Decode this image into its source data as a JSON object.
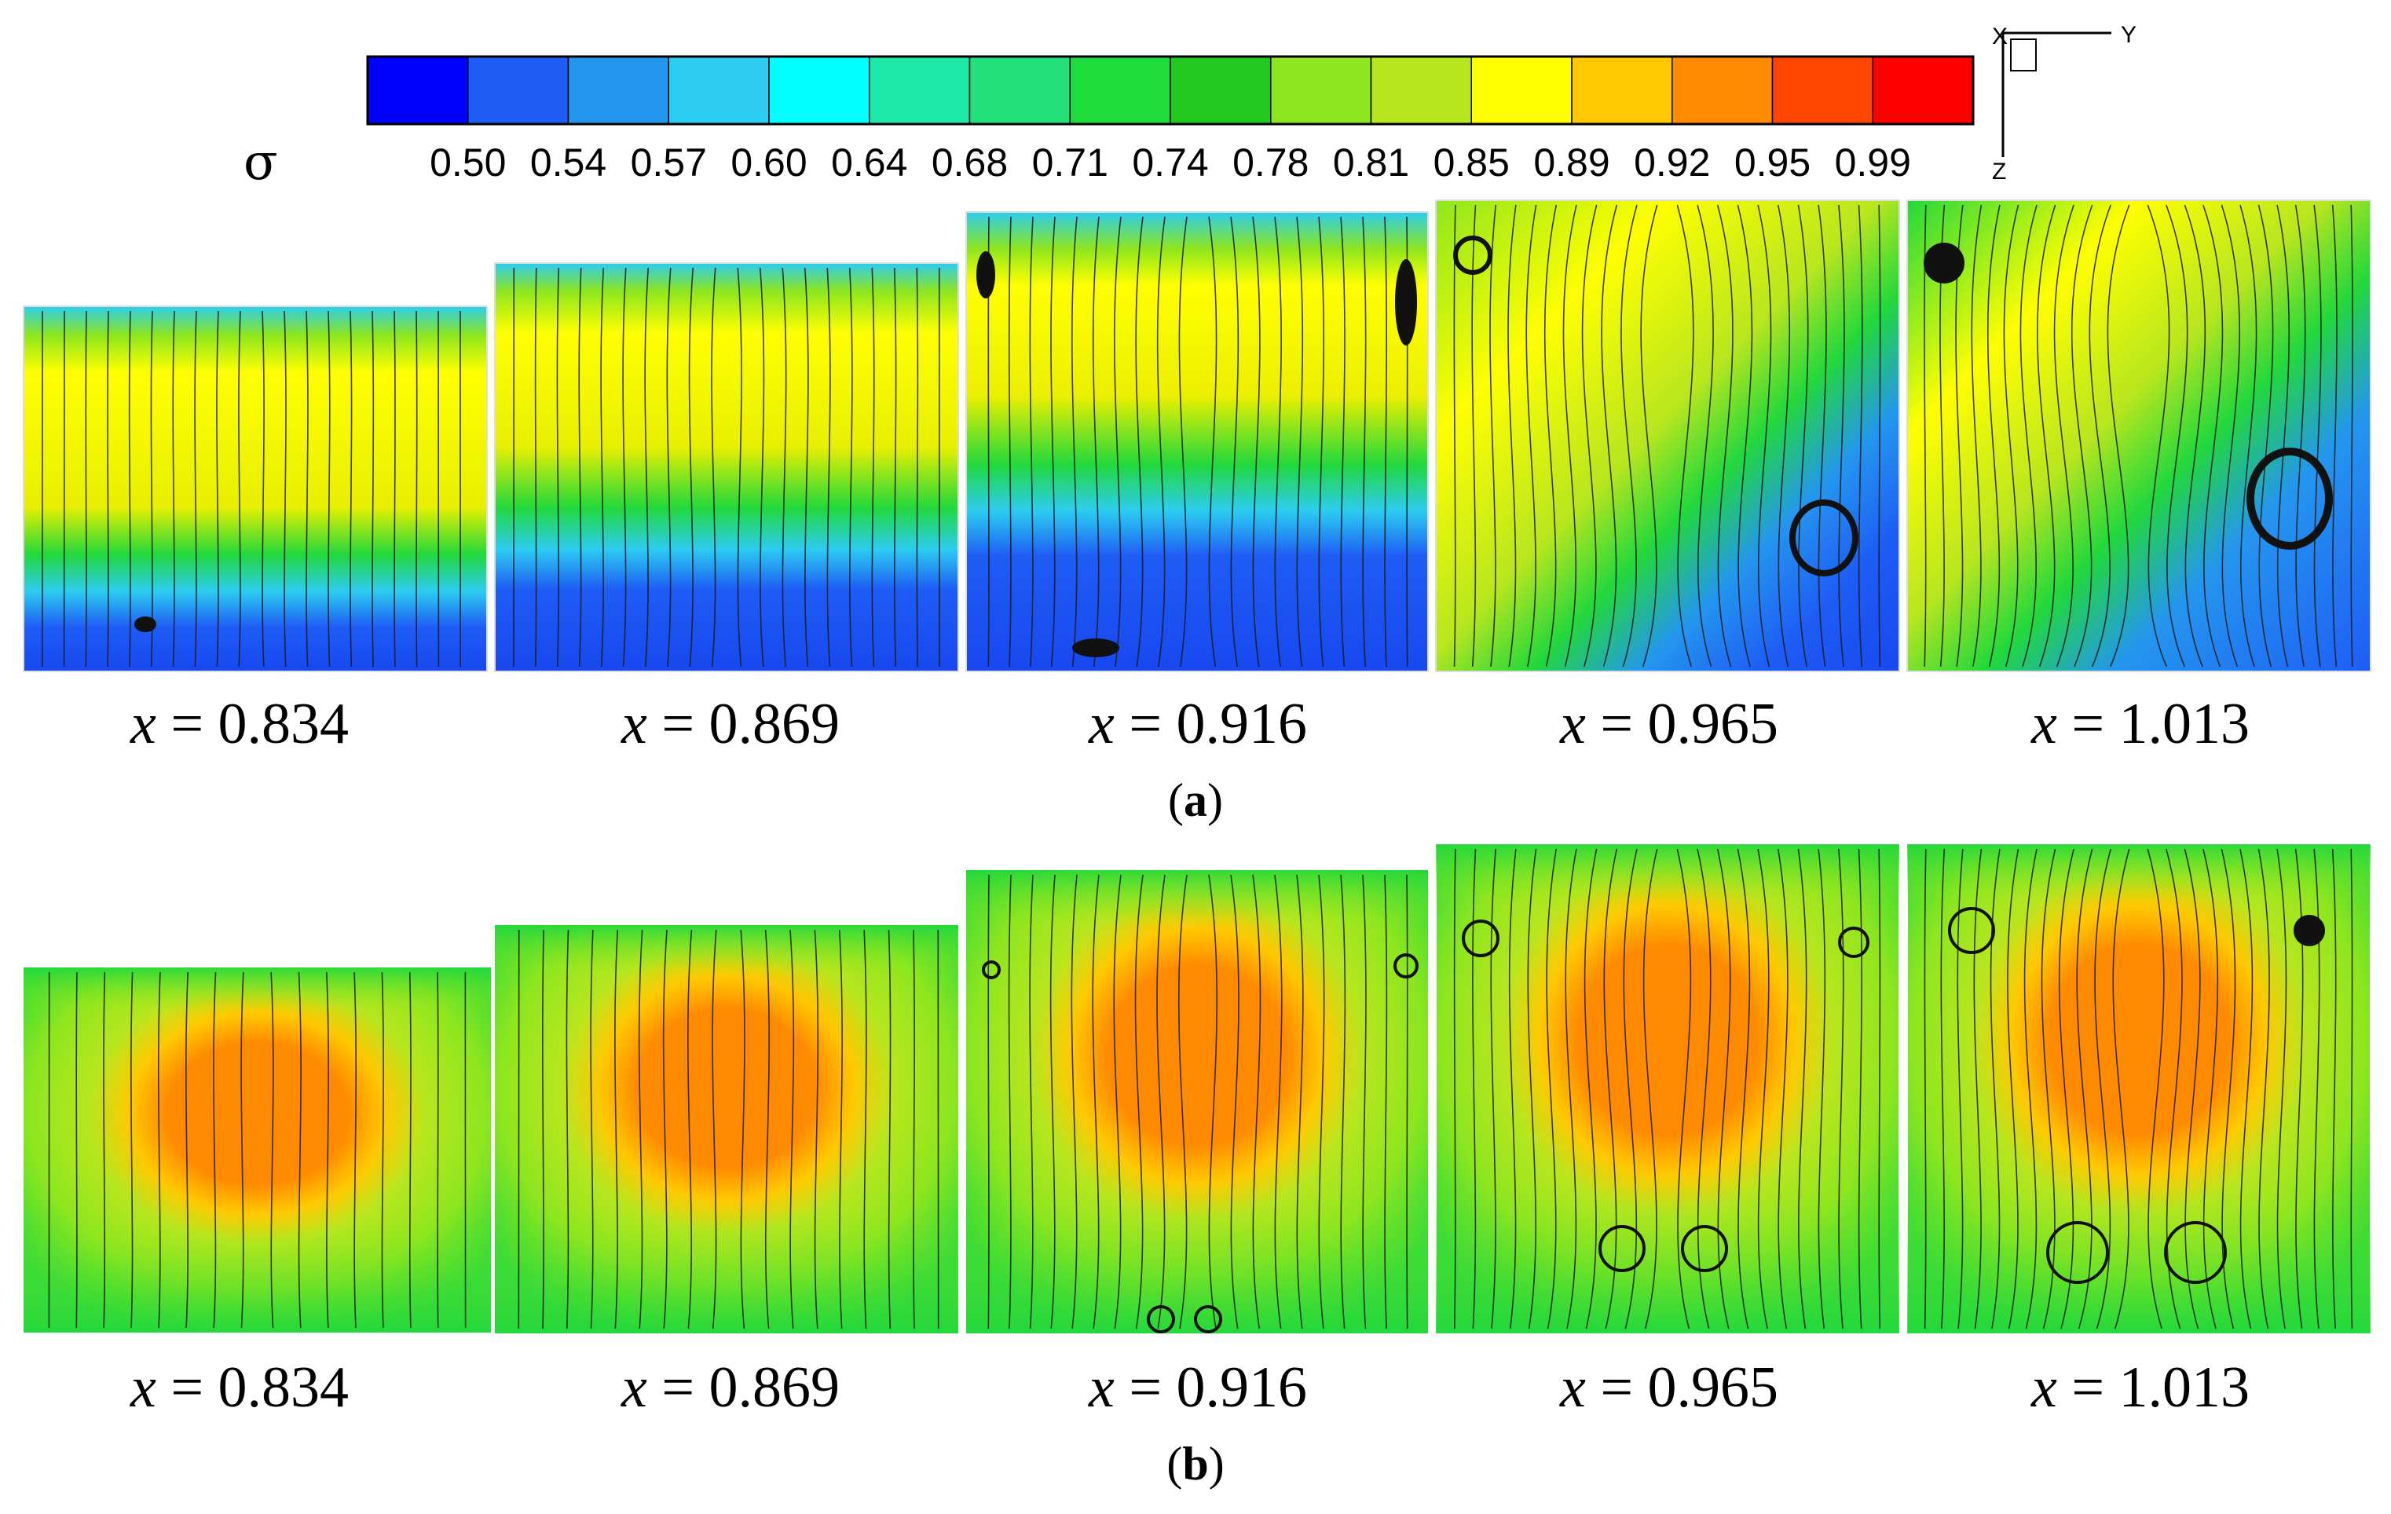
{
  "legend": {
    "symbol": "σ",
    "ticks": [
      "0.50",
      "0.54",
      "0.57",
      "0.60",
      "0.64",
      "0.68",
      "0.71",
      "0.74",
      "0.78",
      "0.81",
      "0.85",
      "0.89",
      "0.92",
      "0.95",
      "0.99"
    ],
    "colors": [
      "#0000ff",
      "#1e5cf5",
      "#2496ee",
      "#2ccdf0",
      "#00ffff",
      "#1ee8a8",
      "#22e07a",
      "#1ddc3c",
      "#22c81e",
      "#8ee61e",
      "#b8e61e",
      "#ffff00",
      "#ffc800",
      "#ff8c00",
      "#ff4600",
      "#ff0000"
    ]
  },
  "axes_triad": {
    "x": "X",
    "y": "Y",
    "z": "Z"
  },
  "panel_a": {
    "label": "a",
    "captions": [
      "x = 0.834",
      "x = 0.869",
      "x = 0.916",
      "x = 0.965",
      "x = 1.013"
    ]
  },
  "panel_b": {
    "label": "b",
    "captions": [
      "x = 0.834",
      "x = 0.869",
      "x = 0.916",
      "x = 0.965",
      "x = 1.013"
    ]
  }
}
